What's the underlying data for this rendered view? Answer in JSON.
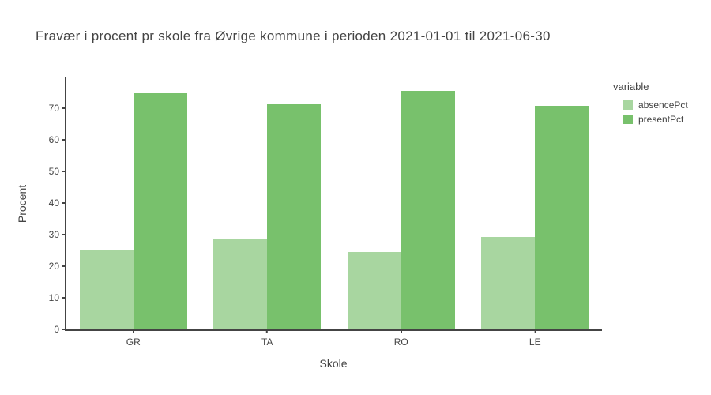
{
  "chart_data": {
    "type": "bar",
    "barmode": "group",
    "title": "Fravær i procent pr skole fra Øvrige kommune i perioden 2021-01-01 til 2021-06-30",
    "xlabel": "Skole",
    "ylabel": "Procent",
    "legend_title": "variable",
    "legend_position": "right",
    "grid": false,
    "categories": [
      "GR",
      "TA",
      "RO",
      "LE"
    ],
    "series": [
      {
        "name": "absencePct",
        "color": "#a8d6a0",
        "values": [
          25.3,
          28.8,
          24.6,
          29.3
        ]
      },
      {
        "name": "presentPct",
        "color": "#78c16c",
        "values": [
          74.7,
          71.2,
          75.4,
          70.7
        ]
      }
    ],
    "ylim": [
      0,
      80
    ],
    "yticks": [
      0,
      10,
      20,
      30,
      40,
      50,
      60,
      70
    ]
  },
  "colors": {
    "axis": "#444444",
    "text": "#444444",
    "background": "#ffffff"
  }
}
